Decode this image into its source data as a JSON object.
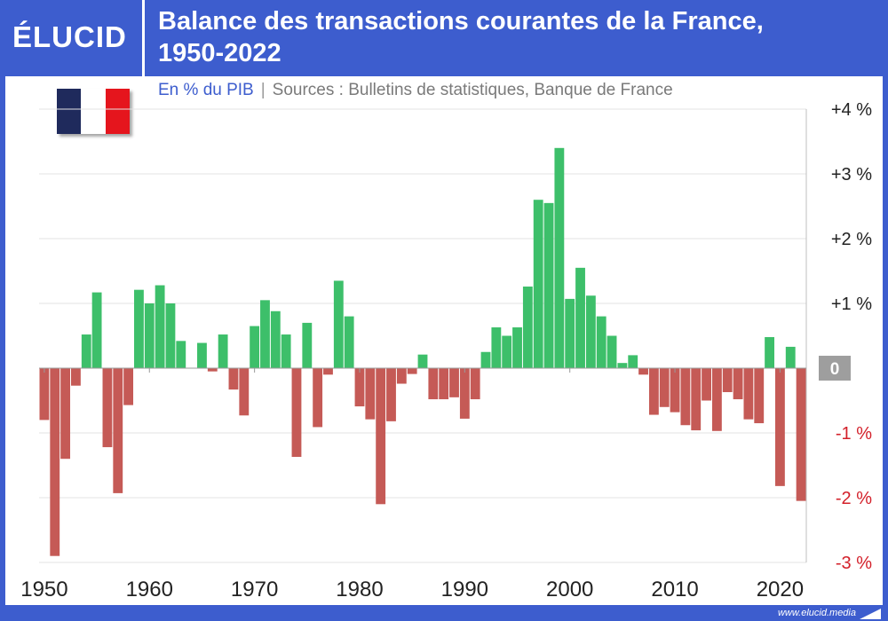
{
  "header": {
    "logo": "ÉLUCID",
    "title_line1": "Balance des transactions courantes de la France,",
    "title_line2": "1950-2022"
  },
  "subtitle": {
    "unit": "En % du PIB",
    "separator": "|",
    "source": "Sources : Bulletins de statistiques, Banque de France"
  },
  "footer": {
    "url": "www.elucid.media"
  },
  "colors": {
    "brand": "#3d5dce",
    "positive": "#3dbf6a",
    "negative": "#c55a56",
    "negative_label": "#d3202a",
    "zero_label_bg": "#9e9e9e",
    "flag_blue": "#1f2a5c",
    "flag_white": "#ffffff",
    "flag_red": "#e5151d"
  },
  "chart_data": {
    "type": "bar",
    "title": "Balance des transactions courantes de la France, 1950-2022",
    "ylabel": "En % du PIB",
    "ylim": [
      -3,
      4
    ],
    "grid": true,
    "x": [
      1950,
      1951,
      1952,
      1953,
      1954,
      1955,
      1956,
      1957,
      1958,
      1959,
      1960,
      1961,
      1962,
      1963,
      1964,
      1965,
      1966,
      1967,
      1968,
      1969,
      1970,
      1971,
      1972,
      1973,
      1974,
      1975,
      1976,
      1977,
      1978,
      1979,
      1980,
      1981,
      1982,
      1983,
      1984,
      1985,
      1986,
      1987,
      1988,
      1989,
      1990,
      1991,
      1992,
      1993,
      1994,
      1995,
      1996,
      1997,
      1998,
      1999,
      2000,
      2001,
      2002,
      2003,
      2004,
      2005,
      2006,
      2007,
      2008,
      2009,
      2010,
      2011,
      2012,
      2013,
      2014,
      2015,
      2016,
      2017,
      2018,
      2019,
      2020,
      2021,
      2022
    ],
    "values": [
      -0.8,
      -2.9,
      -1.4,
      -0.27,
      0.52,
      1.17,
      -1.22,
      -1.93,
      -0.57,
      1.21,
      1.0,
      1.28,
      1.0,
      0.42,
      0,
      0.39,
      -0.05,
      0.52,
      -0.33,
      -0.73,
      0.65,
      1.05,
      0.88,
      0.52,
      -1.37,
      0.7,
      -0.91,
      -0.1,
      1.35,
      0.8,
      -0.59,
      -0.79,
      -2.1,
      -0.82,
      -0.24,
      -0.09,
      0.21,
      -0.48,
      -0.48,
      -0.45,
      -0.78,
      -0.48,
      0.25,
      0.63,
      0.5,
      0.63,
      1.26,
      2.6,
      2.55,
      3.4,
      1.07,
      1.55,
      1.12,
      0.8,
      0.5,
      0.08,
      0.2,
      -0.1,
      -0.72,
      -0.6,
      -0.68,
      -0.88,
      -0.96,
      -0.5,
      -0.97,
      -0.37,
      -0.48,
      -0.79,
      -0.85,
      0.48,
      -1.82,
      0.33,
      -2.05
    ],
    "y_ticks": [
      {
        "value": 4,
        "label": "+4 %"
      },
      {
        "value": 3,
        "label": "+3 %"
      },
      {
        "value": 2,
        "label": "+2 %"
      },
      {
        "value": 1,
        "label": "+1 %"
      },
      {
        "value": 0,
        "label": "0"
      },
      {
        "value": -1,
        "label": "-1 %"
      },
      {
        "value": -2,
        "label": "-2 %"
      },
      {
        "value": -3,
        "label": "-3 %"
      }
    ],
    "x_ticks": [
      {
        "value": 1950,
        "label": "1950"
      },
      {
        "value": 1960,
        "label": "1960"
      },
      {
        "value": 1970,
        "label": "1970"
      },
      {
        "value": 1980,
        "label": "1980"
      },
      {
        "value": 1990,
        "label": "1990"
      },
      {
        "value": 2000,
        "label": "2000"
      },
      {
        "value": 2010,
        "label": "2010"
      },
      {
        "value": 2020,
        "label": "2020"
      }
    ]
  }
}
